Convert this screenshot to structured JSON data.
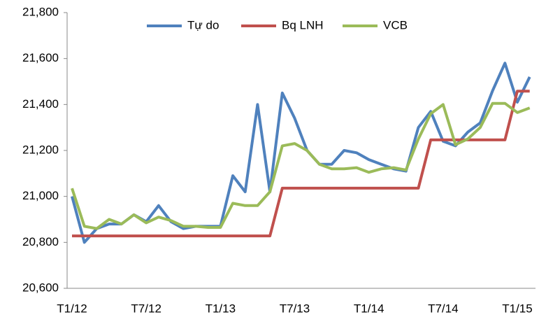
{
  "chart_data": {
    "type": "line",
    "categories": [
      "T1/12",
      null,
      null,
      null,
      null,
      null,
      "T7/12",
      null,
      null,
      null,
      null,
      null,
      "T1/13",
      null,
      null,
      null,
      null,
      null,
      "T7/13",
      null,
      null,
      null,
      null,
      null,
      "T1/14",
      null,
      null,
      null,
      null,
      null,
      "T7/14",
      null,
      null,
      null,
      null,
      null,
      "T1/15",
      null
    ],
    "series": [
      {
        "name": "Tự do",
        "color": "#4f81bd",
        "values": [
          21000,
          20800,
          20860,
          20880,
          20880,
          20920,
          20890,
          20960,
          20890,
          20860,
          20870,
          20870,
          20870,
          21090,
          21020,
          21400,
          21020,
          21450,
          21340,
          21200,
          21140,
          21140,
          21200,
          21190,
          21160,
          21140,
          21120,
          21110,
          21300,
          21370,
          21240,
          21220,
          21280,
          21320,
          21460,
          21580,
          21410,
          21520
        ]
      },
      {
        "name": "Bq LNH",
        "color": "#c0504d",
        "values": [
          20828,
          20828,
          20828,
          20828,
          20828,
          20828,
          20828,
          20828,
          20828,
          20828,
          20828,
          20828,
          20828,
          20828,
          20828,
          20828,
          20828,
          21036,
          21036,
          21036,
          21036,
          21036,
          21036,
          21036,
          21036,
          21036,
          21036,
          21036,
          21036,
          21246,
          21246,
          21246,
          21246,
          21246,
          21246,
          21246,
          21458,
          21458
        ]
      },
      {
        "name": "VCB",
        "color": "#9bbb59",
        "values": [
          21035,
          20870,
          20860,
          20900,
          20880,
          20920,
          20885,
          20910,
          20895,
          20870,
          20870,
          20865,
          20865,
          20970,
          20960,
          20960,
          21020,
          21220,
          21230,
          21200,
          21140,
          21120,
          21120,
          21125,
          21105,
          21120,
          21125,
          21115,
          21250,
          21360,
          21400,
          21225,
          21250,
          21300,
          21405,
          21405,
          21365,
          21385
        ]
      }
    ],
    "ylim": [
      20600,
      21800
    ],
    "yticks": [
      {
        "value": 20600,
        "label": "20,600"
      },
      {
        "value": 20800,
        "label": "20,800"
      },
      {
        "value": 21000,
        "label": "21,000"
      },
      {
        "value": 21200,
        "label": "21,200"
      },
      {
        "value": 21400,
        "label": "21,400"
      },
      {
        "value": 21600,
        "label": "21,600"
      },
      {
        "value": 21800,
        "label": "21,800"
      }
    ],
    "legend": "top"
  }
}
